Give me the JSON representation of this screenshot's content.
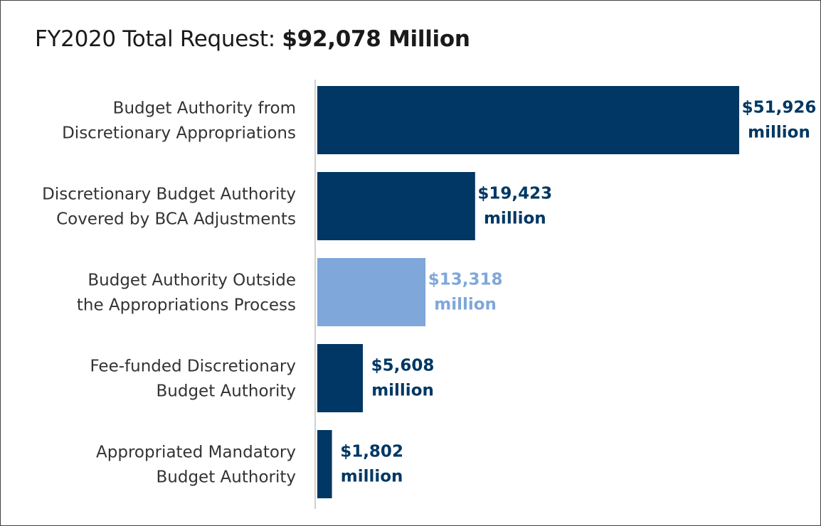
{
  "title_prefix": "FY2020 Total Request:",
  "title_amount": "$92,078 Million",
  "colors": {
    "dark": "#003764",
    "light": "#7fa7d9",
    "axis": "#c0c0c0"
  },
  "chart_data": {
    "type": "bar",
    "orientation": "horizontal",
    "categories": [
      [
        "Budget Authority from",
        "Discretionary Appropriations"
      ],
      [
        "Discretionary Budget Authority",
        "Covered by BCA Adjustments"
      ],
      [
        "Budget Authority Outside",
        "the Appropriations Process"
      ],
      [
        "Fee-funded Discretionary",
        "Budget Authority"
      ],
      [
        "Appropriated Mandatory",
        "Budget Authority"
      ]
    ],
    "values": [
      51926,
      19423,
      13318,
      5608,
      1802
    ],
    "value_labels": [
      [
        "$51,926",
        "million"
      ],
      [
        "$19,423",
        "million"
      ],
      [
        "$13,318",
        "million"
      ],
      [
        "$5,608",
        "million"
      ],
      [
        "$1,802",
        "million"
      ]
    ],
    "bar_colors": [
      "dark",
      "dark",
      "light",
      "dark",
      "dark"
    ],
    "unit": "million",
    "xlim": [
      0,
      51926
    ],
    "grid": false,
    "legend": "none"
  }
}
